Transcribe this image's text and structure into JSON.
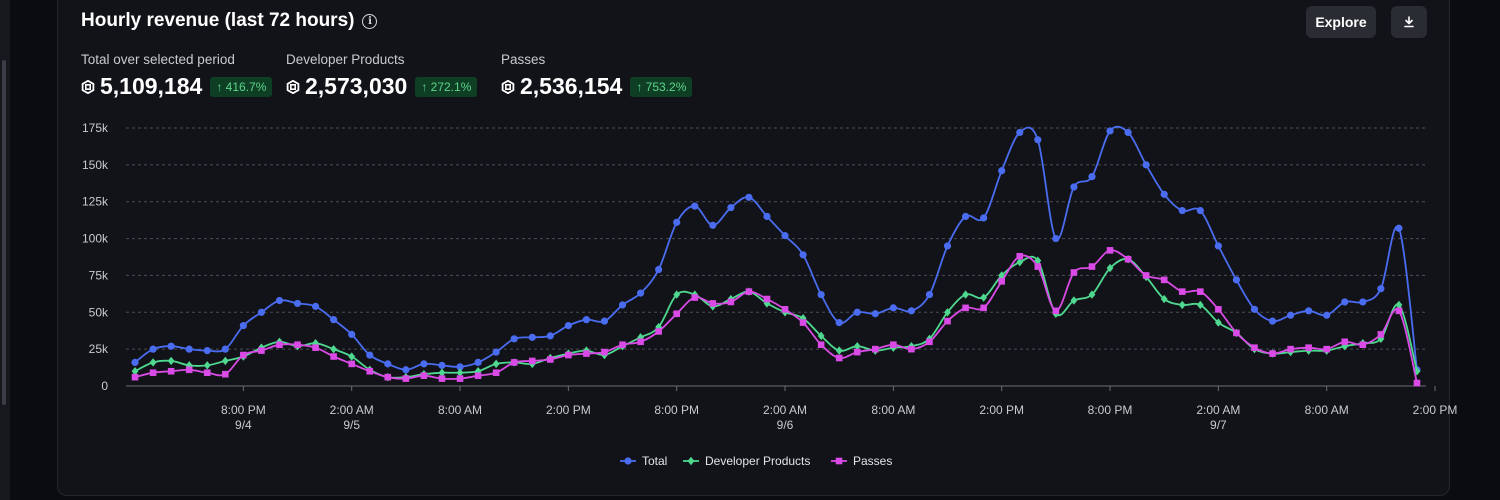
{
  "header": {
    "title": "Hourly revenue (last 72 hours)",
    "explore_label": "Explore",
    "download_icon": "download-icon",
    "info_icon": "info-icon"
  },
  "stats": [
    {
      "label": "Total over selected period",
      "value": "5,109,184",
      "change": "↑ 416.7%"
    },
    {
      "label": "Developer Products",
      "value": "2,573,030",
      "change": "↑ 272.1%"
    },
    {
      "label": "Passes",
      "value": "2,536,154",
      "change": "↑ 753.2%"
    }
  ],
  "colors": {
    "total": "#4a6cf0",
    "dev": "#4fd88f",
    "passes": "#d94ae6",
    "badge_bg": "#0e3f24",
    "badge_fg": "#5fd48b"
  },
  "chart_data": {
    "type": "line",
    "ylim": [
      0,
      175000
    ],
    "y_ticks": [
      0,
      25000,
      50000,
      75000,
      100000,
      125000,
      150000,
      175000
    ],
    "y_tick_labels": [
      "0",
      "25k",
      "50k",
      "75k",
      "100k",
      "125k",
      "150k",
      "175k"
    ],
    "x_ticks": [
      {
        "index": 6,
        "label": "8:00 PM",
        "sub": "9/4"
      },
      {
        "index": 12,
        "label": "2:00 AM",
        "sub": "9/5"
      },
      {
        "index": 18,
        "label": "8:00 AM",
        "sub": ""
      },
      {
        "index": 24,
        "label": "2:00 PM",
        "sub": ""
      },
      {
        "index": 30,
        "label": "8:00 PM",
        "sub": ""
      },
      {
        "index": 36,
        "label": "2:00 AM",
        "sub": "9/6"
      },
      {
        "index": 42,
        "label": "8:00 AM",
        "sub": ""
      },
      {
        "index": 48,
        "label": "2:00 PM",
        "sub": ""
      },
      {
        "index": 54,
        "label": "8:00 PM",
        "sub": ""
      },
      {
        "index": 60,
        "label": "2:00 AM",
        "sub": "9/7"
      },
      {
        "index": 66,
        "label": "8:00 AM",
        "sub": ""
      },
      {
        "index": 72,
        "label": "2:00 PM",
        "sub": ""
      }
    ],
    "grid": true,
    "legend_position": "bottom",
    "series": [
      {
        "name": "Total",
        "key": "total",
        "marker": "circle",
        "values": [
          16000,
          25000,
          27000,
          25000,
          24000,
          25000,
          41000,
          50000,
          58000,
          56000,
          54000,
          45000,
          35000,
          21000,
          15000,
          11000,
          15000,
          14000,
          13000,
          16000,
          23000,
          32000,
          33000,
          34000,
          41000,
          45000,
          44000,
          55000,
          63000,
          79000,
          111000,
          122000,
          109000,
          121000,
          128000,
          115000,
          102000,
          89000,
          62000,
          43000,
          50000,
          49000,
          53000,
          51000,
          62000,
          95000,
          115000,
          114000,
          146000,
          172000,
          167000,
          100000,
          135000,
          142000,
          173000,
          172000,
          150000,
          130000,
          119000,
          119000,
          95000,
          72000,
          52000,
          44000,
          48000,
          51000,
          48000,
          57000,
          57000,
          66000,
          107000,
          11000
        ]
      },
      {
        "name": "Developer Products",
        "key": "dev",
        "marker": "diamond",
        "values": [
          10000,
          16000,
          17000,
          14000,
          14000,
          17000,
          20000,
          26000,
          30000,
          27000,
          29000,
          25000,
          20000,
          11000,
          6000,
          6000,
          8000,
          9000,
          9000,
          10000,
          15000,
          16000,
          15000,
          19000,
          22000,
          24000,
          21000,
          27000,
          33000,
          40000,
          62000,
          62000,
          54000,
          59000,
          64000,
          56000,
          50000,
          46000,
          34000,
          24000,
          27000,
          24000,
          26000,
          27000,
          32000,
          50000,
          62000,
          60000,
          75000,
          84000,
          85000,
          49000,
          58000,
          62000,
          80000,
          86000,
          74000,
          59000,
          55000,
          55000,
          43000,
          36000,
          25000,
          22000,
          23000,
          24000,
          24000,
          27000,
          29000,
          32000,
          55000,
          10000
        ]
      },
      {
        "name": "Passes",
        "key": "passes",
        "marker": "square",
        "values": [
          6000,
          9000,
          10000,
          11000,
          9000,
          8000,
          21000,
          24000,
          28000,
          28000,
          26000,
          20000,
          15000,
          10000,
          6000,
          5000,
          7000,
          5000,
          5000,
          7000,
          9000,
          16000,
          17000,
          18000,
          21000,
          22000,
          23000,
          28000,
          30000,
          37000,
          49000,
          60000,
          56000,
          57000,
          64000,
          59000,
          52000,
          43000,
          28000,
          19000,
          23000,
          25000,
          28000,
          25000,
          30000,
          44000,
          53000,
          53000,
          71000,
          88000,
          81000,
          51000,
          77000,
          81000,
          92000,
          86000,
          75000,
          72000,
          64000,
          64000,
          52000,
          36000,
          26000,
          22000,
          25000,
          26000,
          25000,
          30000,
          28000,
          35000,
          51000,
          2000
        ]
      }
    ]
  }
}
